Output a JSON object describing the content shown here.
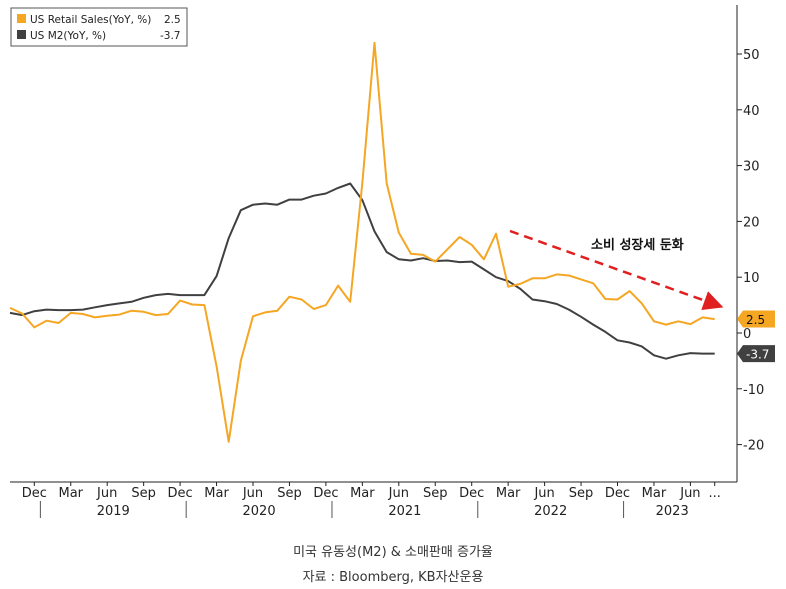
{
  "caption": {
    "title": "미국 유동성(M2) & 소매판매 증가율",
    "source": "자료 : Bloomberg, KB자산운용"
  },
  "colors": {
    "retail": "#f5a623",
    "m2": "#404040",
    "arrow": "#e02020",
    "axis": "#222222"
  },
  "chart_data": {
    "type": "line",
    "ylim": [
      -25,
      60
    ],
    "y_ticks": [
      -20,
      -10,
      0,
      10,
      20,
      30,
      40,
      50
    ],
    "grid": false,
    "legend_position": "top-left",
    "x_labels": [
      "Dec",
      "Mar",
      "Jun",
      "Sep",
      "Dec",
      "Mar",
      "Jun",
      "Sep",
      "Dec",
      "Mar",
      "Jun",
      "Sep",
      "Dec",
      "Mar",
      "Jun",
      "Sep",
      "Dec",
      "Mar",
      "Jun",
      "..."
    ],
    "years": [
      "2019",
      "2020",
      "2021",
      "2022",
      "2023"
    ],
    "x": [
      "2018-10",
      "2018-11",
      "2018-12",
      "2019-01",
      "2019-02",
      "2019-03",
      "2019-04",
      "2019-05",
      "2019-06",
      "2019-07",
      "2019-08",
      "2019-09",
      "2019-10",
      "2019-11",
      "2019-12",
      "2020-01",
      "2020-02",
      "2020-03",
      "2020-04",
      "2020-05",
      "2020-06",
      "2020-07",
      "2020-08",
      "2020-09",
      "2020-10",
      "2020-11",
      "2020-12",
      "2021-01",
      "2021-02",
      "2021-03",
      "2021-04",
      "2021-05",
      "2021-06",
      "2021-07",
      "2021-08",
      "2021-09",
      "2021-10",
      "2021-11",
      "2021-12",
      "2022-01",
      "2022-02",
      "2022-03",
      "2022-04",
      "2022-05",
      "2022-06",
      "2022-07",
      "2022-08",
      "2022-09",
      "2022-10",
      "2022-11",
      "2022-12",
      "2023-01",
      "2023-02",
      "2023-03",
      "2023-04",
      "2023-05",
      "2023-06",
      "2023-07",
      "2023-08"
    ],
    "series": [
      {
        "name": "US Retail Sales(YoY, %)",
        "last_value": "2.5",
        "values": [
          4.5,
          3.5,
          1.0,
          2.2,
          1.8,
          3.6,
          3.4,
          2.8,
          3.1,
          3.3,
          4.0,
          3.8,
          3.2,
          3.4,
          5.8,
          5.1,
          5.0,
          -6.0,
          -19.5,
          -5.0,
          3.0,
          3.7,
          4.0,
          6.5,
          6.0,
          4.3,
          5.0,
          8.5,
          5.6,
          27.0,
          52.0,
          26.8,
          18.0,
          14.2,
          14.0,
          12.8,
          15.0,
          17.2,
          15.8,
          13.2,
          17.8,
          8.3,
          8.8,
          9.8,
          9.8,
          10.5,
          10.3,
          9.6,
          8.9,
          6.1,
          6.0,
          7.5,
          5.3,
          2.1,
          1.5,
          2.1,
          1.6,
          2.8,
          2.5
        ]
      },
      {
        "name": "US M2(YoY, %)",
        "last_value": "-3.7",
        "values": [
          3.6,
          3.2,
          3.9,
          4.2,
          4.1,
          4.1,
          4.2,
          4.6,
          5.0,
          5.3,
          5.6,
          6.3,
          6.8,
          7.0,
          6.8,
          6.8,
          6.8,
          10.2,
          17.0,
          22.0,
          23.0,
          23.2,
          23.0,
          23.9,
          23.9,
          24.6,
          25.0,
          26.0,
          26.8,
          23.8,
          18.2,
          14.5,
          13.2,
          13.0,
          13.4,
          12.9,
          13.0,
          12.7,
          12.8,
          11.4,
          10.0,
          9.3,
          7.9,
          6.0,
          5.7,
          5.2,
          4.2,
          2.9,
          1.5,
          0.2,
          -1.3,
          -1.7,
          -2.4,
          -4.0,
          -4.6,
          -4.0,
          -3.6,
          -3.7,
          -3.7
        ]
      }
    ]
  },
  "annotation": {
    "text": "소비 성장세 둔화"
  }
}
